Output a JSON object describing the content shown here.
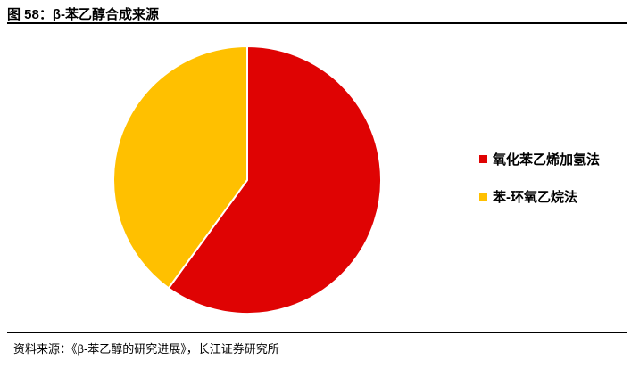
{
  "header": {
    "title": "图 58：β-苯乙醇合成来源",
    "figure_label": "图 58",
    "figure_name": "β-苯乙醇合成来源"
  },
  "footer": {
    "source": "资料来源：《β-苯乙醇的研究进展》，长江证券研究所"
  },
  "colors": {
    "red_slice": "#DF0303",
    "yellow_slice": "#FFC000",
    "rule": "#000000",
    "background": "#FFFFFF"
  },
  "chart_data": {
    "type": "pie",
    "title": "β-苯乙醇合成来源",
    "start_angle_deg_from_top": 0,
    "direction": "clockwise",
    "legend_position": "right",
    "values_unit": "percent (estimated from arc angles, no data labels shown)",
    "segments": [
      {
        "name": "styrene-oxide-hydrogenation",
        "label": "氧化苯乙烯加氢法",
        "value": 60,
        "color": "#DF0303"
      },
      {
        "name": "benzene-ethylene-oxide",
        "label": "苯-环氧乙烷法",
        "value": 40,
        "color": "#FFC000"
      }
    ]
  }
}
